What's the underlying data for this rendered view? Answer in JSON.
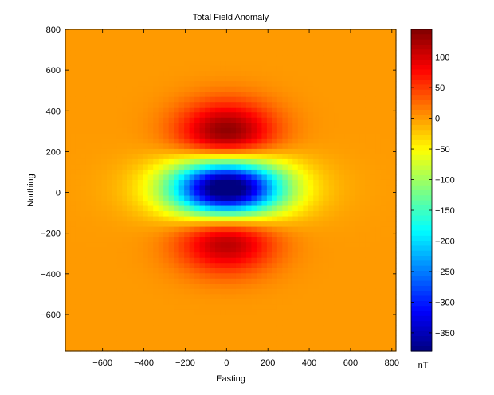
{
  "chart_data": {
    "type": "heatmap",
    "title": "Total Field Anomaly",
    "xlabel": "Easting",
    "ylabel": "Northing",
    "xlim": [
      -780,
      820
    ],
    "ylim": [
      -780,
      800
    ],
    "xticks": [
      -600,
      -400,
      -200,
      0,
      200,
      400,
      600,
      800
    ],
    "yticks": [
      -600,
      -400,
      -200,
      0,
      200,
      400,
      600,
      800
    ],
    "grid": false,
    "field": {
      "description_units": "nT",
      "background": 0,
      "center_minimum": {
        "x": 0,
        "y": 20,
        "value": -380
      },
      "positive_lobes": [
        {
          "x": 0,
          "y": 290,
          "value": 145
        },
        {
          "x": 0,
          "y": -240,
          "value": 125
        }
      ]
    },
    "colorbar": {
      "label": "nT",
      "colormap": "jet",
      "range": [
        -380,
        145
      ],
      "ticks": [
        100,
        50,
        0,
        -50,
        -100,
        -150,
        -200,
        -250,
        -300,
        -350
      ]
    }
  }
}
